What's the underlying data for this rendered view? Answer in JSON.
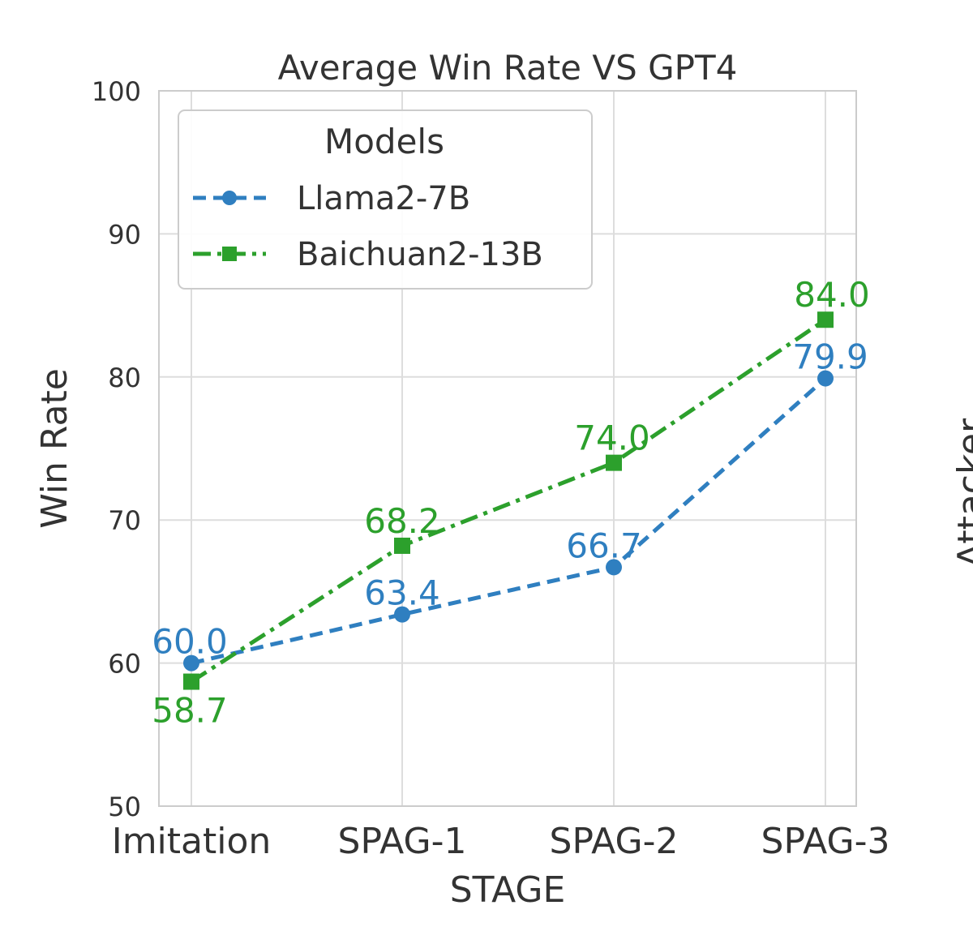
{
  "chart_data": {
    "type": "line",
    "title": "Average Win Rate VS GPT4",
    "xlabel": "STAGE",
    "ylabel": "Win Rate",
    "categories": [
      "Imitation",
      "SPAG-1",
      "SPAG-2",
      "SPAG-3"
    ],
    "ylim": [
      50,
      100
    ],
    "yticks": [
      50,
      60,
      70,
      80,
      90,
      100
    ],
    "grid": true,
    "legend": {
      "title": "Models",
      "position": "top-left"
    },
    "series": [
      {
        "name": "Llama2-7B",
        "values": [
          60.0,
          63.4,
          66.7,
          79.9
        ],
        "labels": [
          "60.0",
          "63.4",
          "66.7",
          "79.9"
        ],
        "color": "#2f7fc0",
        "linestyle": "dashed",
        "marker": "circle"
      },
      {
        "name": "Baichuan2-13B",
        "values": [
          58.7,
          68.2,
          74.0,
          84.0
        ],
        "labels": [
          "58.7",
          "68.2",
          "74.0",
          "84.0"
        ],
        "color": "#2ca02c",
        "linestyle": "dashdot",
        "marker": "square"
      }
    ],
    "side_text": "Attacker"
  }
}
